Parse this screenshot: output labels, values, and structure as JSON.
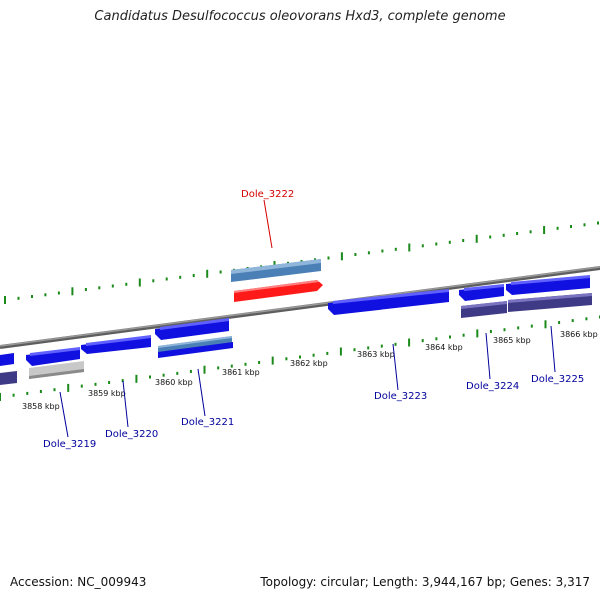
{
  "title": "Candidatus Desulfococcus oleovorans Hxd3, complete genome",
  "footer": {
    "accession": "Accession: NC_009943",
    "summary": "Topology: circular; Length: 3,944,167 bp; Genes: 3,317"
  },
  "colors": {
    "cds_forward": "#1010e0",
    "cds_highlight": "#ff1010",
    "rna_or_other": "#4a8abf",
    "cds_purple": "#3f3a85",
    "pseudo_grey": "#c6c6c6",
    "backbone": "#7a7a7a",
    "tick_green": "#1a8a1a",
    "label_blue": "#00009c",
    "label_red": "#d40000"
  },
  "ruler": {
    "labels": [
      "3858 kbp",
      "3859 kbp",
      "3860 kbp",
      "3861 kbp",
      "3862 kbp",
      "3863 kbp",
      "3864 kbp",
      "3865 kbp",
      "3866 kbp"
    ]
  },
  "genes": [
    {
      "name": "Dole_3219",
      "color": "label_blue"
    },
    {
      "name": "Dole_3220",
      "color": "label_blue"
    },
    {
      "name": "Dole_3221",
      "color": "label_blue"
    },
    {
      "name": "Dole_3222",
      "color": "label_red"
    },
    {
      "name": "Dole_3223",
      "color": "label_blue"
    },
    {
      "name": "Dole_3224",
      "color": "label_blue"
    },
    {
      "name": "Dole_3225",
      "color": "label_blue"
    }
  ]
}
